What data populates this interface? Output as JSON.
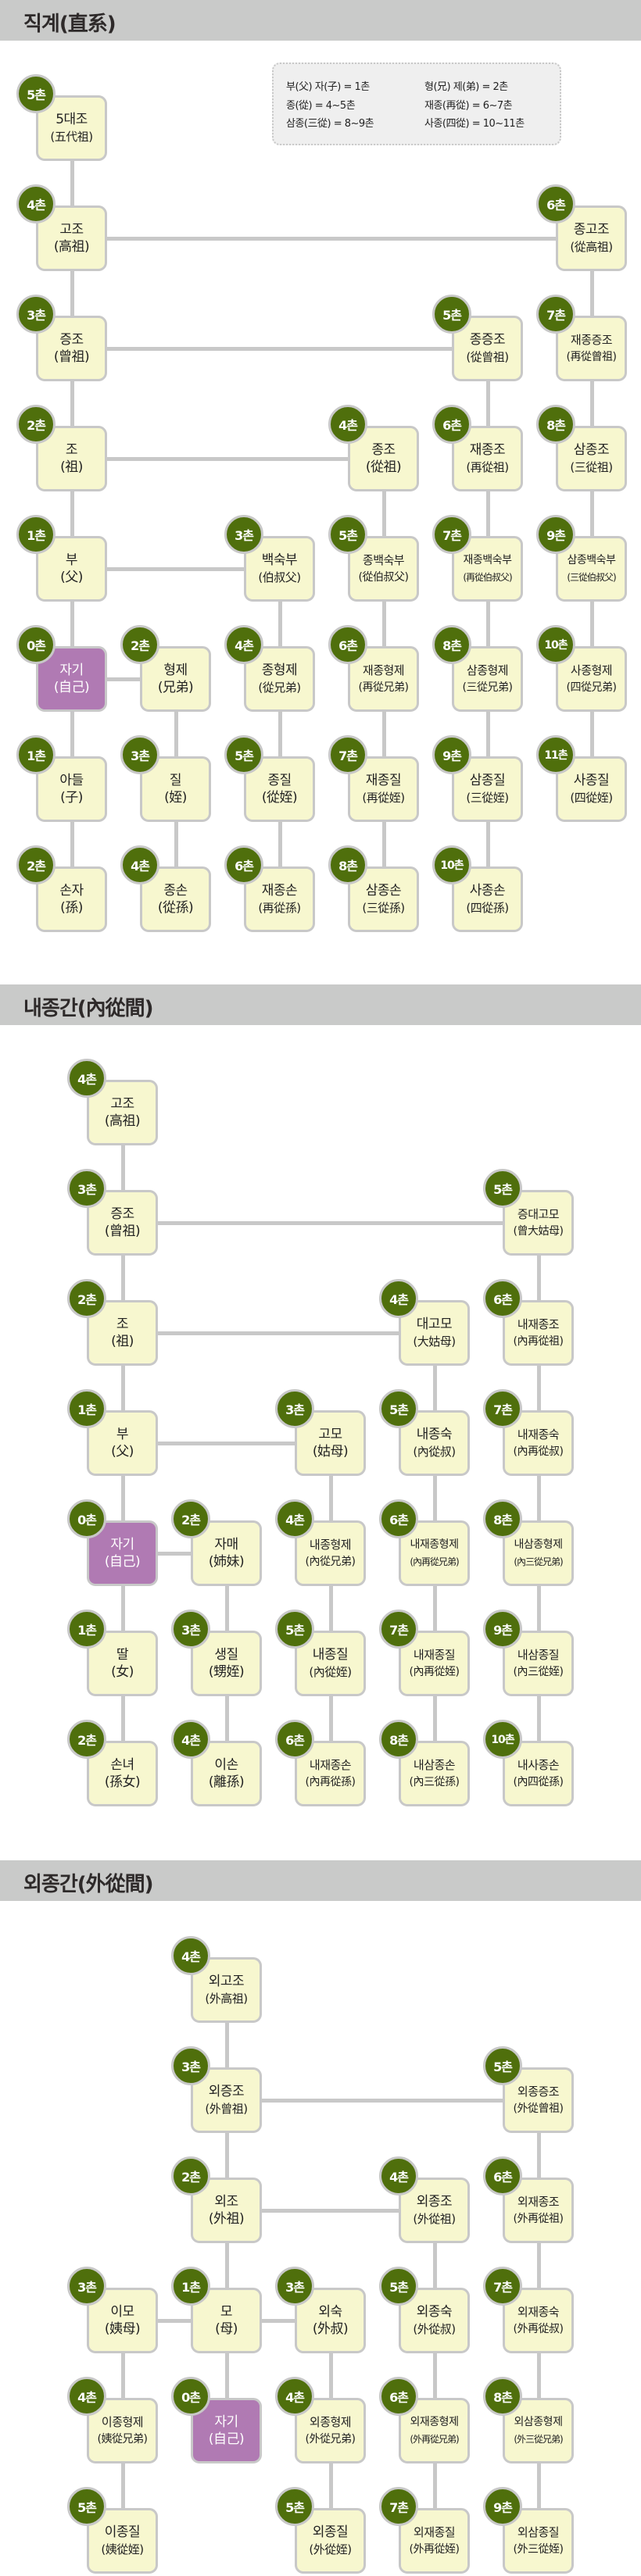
{
  "colors": {
    "node_fill": "#f7f7cf",
    "self_fill": "#b07ab3",
    "badge": "#4f6f0c",
    "line": "#c8c8c8",
    "header": "#c9cac9"
  },
  "legend": [
    "부(父) 자(子) = 1촌",
    "형(兄) 제(弟) = 2촌",
    "종(從) = 4~5촌",
    "재종(再從) = 6~7촌",
    "삼종(三從) = 8~9촌",
    "사종(四從) = 10~11촌"
  ],
  "sections": [
    {
      "title": "직계(直系)",
      "nodes": [
        {
          "chon": "5촌",
          "name": "5대조",
          "hanja": "(五代祖)"
        },
        {
          "chon": "4촌",
          "name": "고조",
          "hanja": "(高祖)"
        },
        {
          "chon": "6촌",
          "name": "종고조",
          "hanja": "(從高祖)"
        },
        {
          "chon": "3촌",
          "name": "증조",
          "hanja": "(曾祖)"
        },
        {
          "chon": "5촌",
          "name": "종증조",
          "hanja": "(從曾祖)"
        },
        {
          "chon": "7촌",
          "name": "재종증조",
          "hanja": "(再從曾祖)"
        },
        {
          "chon": "2촌",
          "name": "조",
          "hanja": "(祖)"
        },
        {
          "chon": "4촌",
          "name": "종조",
          "hanja": "(從祖)"
        },
        {
          "chon": "6촌",
          "name": "재종조",
          "hanja": "(再從祖)"
        },
        {
          "chon": "8촌",
          "name": "삼종조",
          "hanja": "(三從祖)"
        },
        {
          "chon": "1촌",
          "name": "부",
          "hanja": "(父)"
        },
        {
          "chon": "3촌",
          "name": "백숙부",
          "hanja": "(伯叔父)"
        },
        {
          "chon": "5촌",
          "name": "종백숙부",
          "hanja": "(從伯叔父)"
        },
        {
          "chon": "7촌",
          "name": "재종백숙부",
          "hanja": "(再從伯叔父)"
        },
        {
          "chon": "9촌",
          "name": "삼종백숙부",
          "hanja": "(三從伯叔父)"
        },
        {
          "chon": "0촌",
          "name": "자기",
          "hanja": "(自己)",
          "self": true
        },
        {
          "chon": "2촌",
          "name": "형제",
          "hanja": "(兄弟)"
        },
        {
          "chon": "4촌",
          "name": "종형제",
          "hanja": "(從兄弟)"
        },
        {
          "chon": "6촌",
          "name": "재종형제",
          "hanja": "(再從兄弟)"
        },
        {
          "chon": "8촌",
          "name": "삼종형제",
          "hanja": "(三從兄弟)"
        },
        {
          "chon": "10촌",
          "name": "사종형제",
          "hanja": "(四從兄弟)"
        },
        {
          "chon": "1촌",
          "name": "아들",
          "hanja": "(子)"
        },
        {
          "chon": "3촌",
          "name": "질",
          "hanja": "(姪)"
        },
        {
          "chon": "5촌",
          "name": "종질",
          "hanja": "(從姪)"
        },
        {
          "chon": "7촌",
          "name": "재종질",
          "hanja": "(再從姪)"
        },
        {
          "chon": "9촌",
          "name": "삼종질",
          "hanja": "(三從姪)"
        },
        {
          "chon": "11촌",
          "name": "사종질",
          "hanja": "(四從姪)"
        },
        {
          "chon": "2촌",
          "name": "손자",
          "hanja": "(孫)"
        },
        {
          "chon": "4촌",
          "name": "종손",
          "hanja": "(從孫)"
        },
        {
          "chon": "6촌",
          "name": "재종손",
          "hanja": "(再從孫)"
        },
        {
          "chon": "8촌",
          "name": "삼종손",
          "hanja": "(三從孫)"
        },
        {
          "chon": "10촌",
          "name": "사종손",
          "hanja": "(四從孫)"
        }
      ]
    },
    {
      "title": "내종간(內從間)",
      "nodes": [
        {
          "chon": "4촌",
          "name": "고조",
          "hanja": "(高祖)"
        },
        {
          "chon": "3촌",
          "name": "증조",
          "hanja": "(曾祖)"
        },
        {
          "chon": "5촌",
          "name": "증대고모",
          "hanja": "(曾大姑母)"
        },
        {
          "chon": "2촌",
          "name": "조",
          "hanja": "(祖)"
        },
        {
          "chon": "4촌",
          "name": "대고모",
          "hanja": "(大姑母)"
        },
        {
          "chon": "6촌",
          "name": "내재종조",
          "hanja": "(內再從祖)"
        },
        {
          "chon": "1촌",
          "name": "부",
          "hanja": "(父)"
        },
        {
          "chon": "3촌",
          "name": "고모",
          "hanja": "(姑母)"
        },
        {
          "chon": "5촌",
          "name": "내종숙",
          "hanja": "(內從叔)"
        },
        {
          "chon": "7촌",
          "name": "내재종숙",
          "hanja": "(內再從叔)"
        },
        {
          "chon": "0촌",
          "name": "자기",
          "hanja": "(自己)",
          "self": true
        },
        {
          "chon": "2촌",
          "name": "자매",
          "hanja": "(姉妹)"
        },
        {
          "chon": "4촌",
          "name": "내종형제",
          "hanja": "(內從兄弟)"
        },
        {
          "chon": "6촌",
          "name": "내재종형제",
          "hanja": "(內再從兄弟)"
        },
        {
          "chon": "8촌",
          "name": "내삼종형제",
          "hanja": "(內三從兄弟)"
        },
        {
          "chon": "1촌",
          "name": "딸",
          "hanja": "(女)"
        },
        {
          "chon": "3촌",
          "name": "생질",
          "hanja": "(甥姪)"
        },
        {
          "chon": "5촌",
          "name": "내종질",
          "hanja": "(內從姪)"
        },
        {
          "chon": "7촌",
          "name": "내재종질",
          "hanja": "(內再從姪)"
        },
        {
          "chon": "9촌",
          "name": "내삼종질",
          "hanja": "(內三從姪)"
        },
        {
          "chon": "2촌",
          "name": "손녀",
          "hanja": "(孫女)"
        },
        {
          "chon": "4촌",
          "name": "이손",
          "hanja": "(離孫)"
        },
        {
          "chon": "6촌",
          "name": "내재종손",
          "hanja": "(內再從孫)"
        },
        {
          "chon": "8촌",
          "name": "내삼종손",
          "hanja": "(內三從孫)"
        },
        {
          "chon": "10촌",
          "name": "내사종손",
          "hanja": "(內四從孫)"
        }
      ]
    },
    {
      "title": "외종간(外從間)",
      "nodes": [
        {
          "chon": "4촌",
          "name": "외고조",
          "hanja": "(外高祖)"
        },
        {
          "chon": "3촌",
          "name": "외증조",
          "hanja": "(外曾祖)"
        },
        {
          "chon": "5촌",
          "name": "외종증조",
          "hanja": "(外從曾祖)"
        },
        {
          "chon": "2촌",
          "name": "외조",
          "hanja": "(外祖)"
        },
        {
          "chon": "4촌",
          "name": "외종조",
          "hanja": "(外從祖)"
        },
        {
          "chon": "6촌",
          "name": "외재종조",
          "hanja": "(外再從祖)"
        },
        {
          "chon": "3촌",
          "name": "이모",
          "hanja": "(姨母)"
        },
        {
          "chon": "1촌",
          "name": "모",
          "hanja": "(母)"
        },
        {
          "chon": "3촌",
          "name": "외숙",
          "hanja": "(外叔)"
        },
        {
          "chon": "5촌",
          "name": "외종숙",
          "hanja": "(外從叔)"
        },
        {
          "chon": "7촌",
          "name": "외재종숙",
          "hanja": "(外再從叔)"
        },
        {
          "chon": "4촌",
          "name": "이종형제",
          "hanja": "(姨從兄弟)"
        },
        {
          "chon": "0촌",
          "name": "자기",
          "hanja": "(自己)",
          "self": true
        },
        {
          "chon": "4촌",
          "name": "외종형제",
          "hanja": "(外從兄弟)"
        },
        {
          "chon": "6촌",
          "name": "외재종형제",
          "hanja": "(外再從兄弟)"
        },
        {
          "chon": "8촌",
          "name": "외삼종형제",
          "hanja": "(外三從兄弟)"
        },
        {
          "chon": "5촌",
          "name": "이종질",
          "hanja": "(姨從姪)"
        },
        {
          "chon": "5촌",
          "name": "외종질",
          "hanja": "(外從姪)"
        },
        {
          "chon": "7촌",
          "name": "외재종질",
          "hanja": "(外再從姪)"
        },
        {
          "chon": "9촌",
          "name": "외삼종질",
          "hanja": "(外三從姪)"
        }
      ]
    }
  ]
}
